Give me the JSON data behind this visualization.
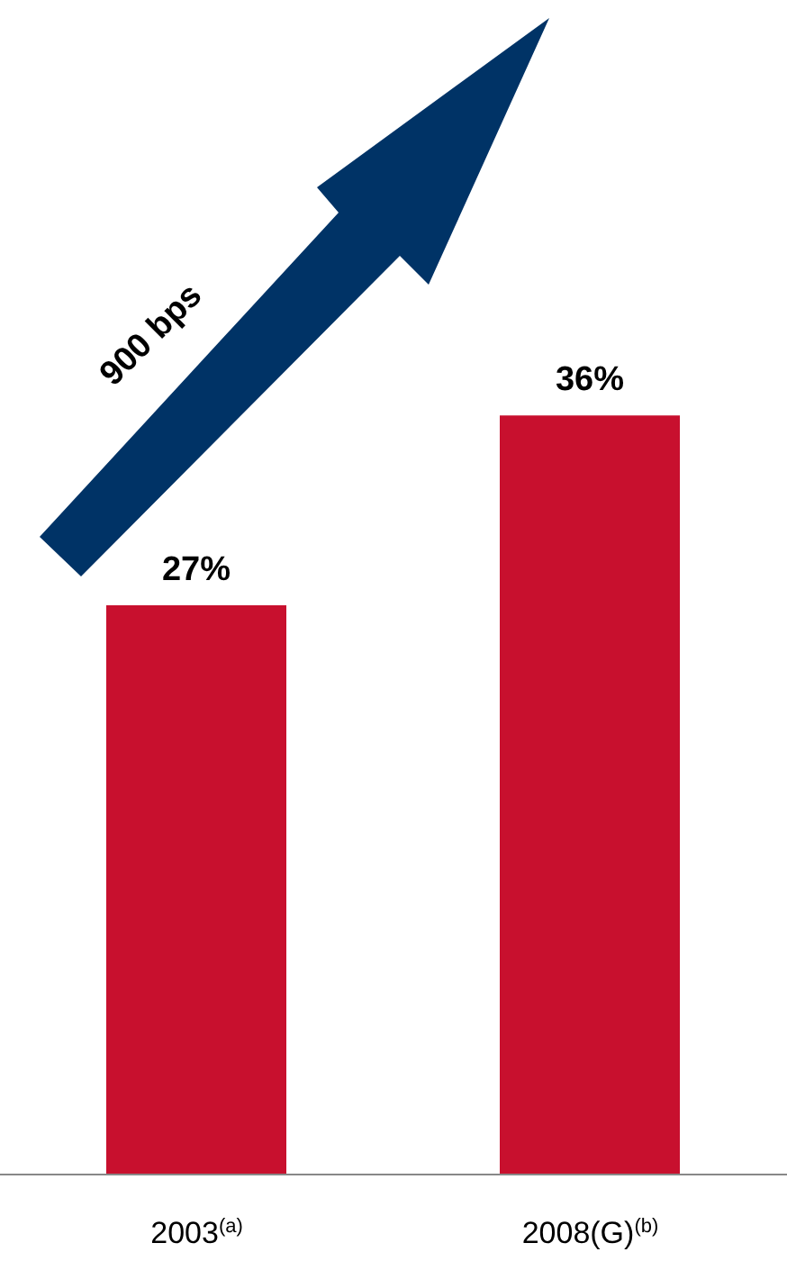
{
  "chart_data": {
    "type": "bar",
    "categories": [
      "2003$^{(a)}$",
      "2008(G)$^{(b)}$"
    ],
    "values": [
      27,
      36
    ],
    "value_labels": [
      "27%",
      "36%"
    ],
    "color": "#c8102e",
    "tick_labels": "x",
    "annotations": [
      "900 bps"
    ]
  }
}
